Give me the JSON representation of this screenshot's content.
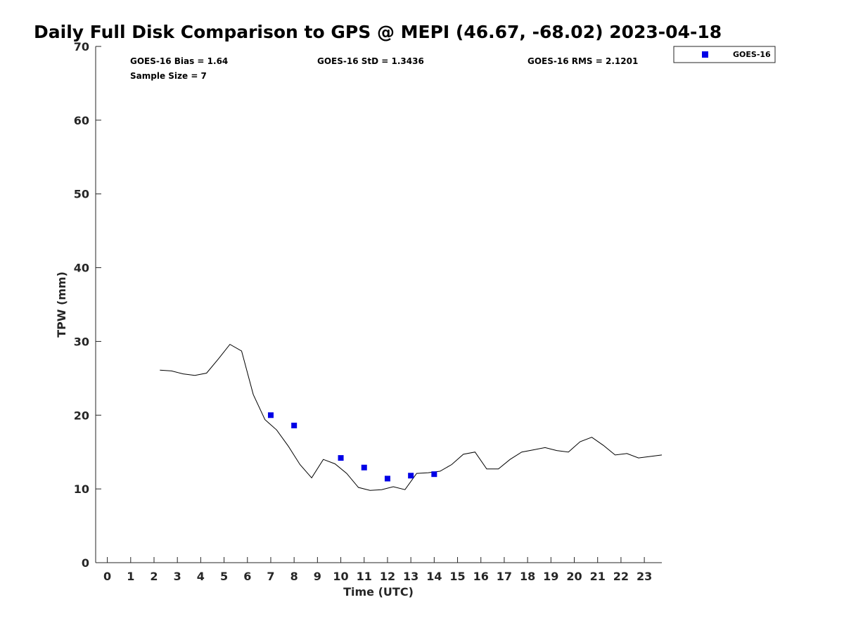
{
  "title": "Daily Full Disk Comparison to GPS @ MEPI (46.67, -68.02) 2023-04-18",
  "stats": {
    "bias": "GOES-16 Bias = 1.64",
    "sample_size": "Sample Size = 7",
    "std": "GOES-16 StD = 1.3436",
    "rms": "GOES-16 RMS = 2.1201"
  },
  "legend": {
    "label": "GOES-16"
  },
  "colors": {
    "marker": "#0000e6",
    "line": "#000000",
    "axis": "#262626"
  },
  "chart_data": {
    "type": "line",
    "title": "Daily Full Disk Comparison to GPS @ MEPI (46.67, -68.02) 2023-04-18",
    "xlabel": "Time (UTC)",
    "ylabel": "TPW (mm)",
    "xlim": [
      -0.5,
      23.75
    ],
    "ylim": [
      0,
      70
    ],
    "x_ticks": [
      0,
      1,
      2,
      3,
      4,
      5,
      6,
      7,
      8,
      9,
      10,
      11,
      12,
      13,
      14,
      15,
      16,
      17,
      18,
      19,
      20,
      21,
      22,
      23
    ],
    "y_ticks": [
      0,
      10,
      20,
      30,
      40,
      50,
      60,
      70
    ],
    "grid": false,
    "legend_position": "top-right, outside plot",
    "series": [
      {
        "style": "line",
        "x": [
          2.25,
          2.75,
          3.25,
          3.75,
          4.25,
          4.75,
          5.25,
          5.75,
          6.25,
          6.75,
          7.25,
          7.75,
          8.25,
          8.75,
          9.25,
          9.75,
          10.25,
          10.75,
          11.25,
          11.75,
          12.25,
          12.75,
          13.25,
          13.75,
          14.25,
          14.75,
          15.25,
          15.75,
          16.25,
          16.75,
          17.25,
          17.75,
          18.25,
          18.75,
          19.25,
          19.75,
          20.25,
          20.75,
          21.25,
          21.75,
          22.25,
          22.75,
          23.25,
          23.75
        ],
        "values": [
          26.1,
          26.0,
          25.6,
          25.4,
          25.7,
          27.6,
          29.6,
          28.7,
          22.8,
          19.4,
          18.0,
          15.8,
          13.3,
          11.5,
          14.0,
          13.4,
          12.1,
          10.2,
          9.8,
          9.9,
          10.3,
          9.9,
          12.1,
          12.2,
          12.4,
          13.3,
          14.7,
          15.0,
          12.7,
          12.7,
          14.0,
          15.0,
          15.3,
          15.6,
          15.2,
          15.0,
          16.4,
          17.0,
          15.9,
          14.6,
          14.8,
          14.2,
          14.4,
          14.6
        ]
      },
      {
        "name": "GOES-16",
        "style": "scatter",
        "x": [
          7,
          8,
          10,
          11,
          12,
          13,
          14
        ],
        "values": [
          20.0,
          18.6,
          14.2,
          12.9,
          11.4,
          11.8,
          12.0
        ]
      }
    ]
  }
}
